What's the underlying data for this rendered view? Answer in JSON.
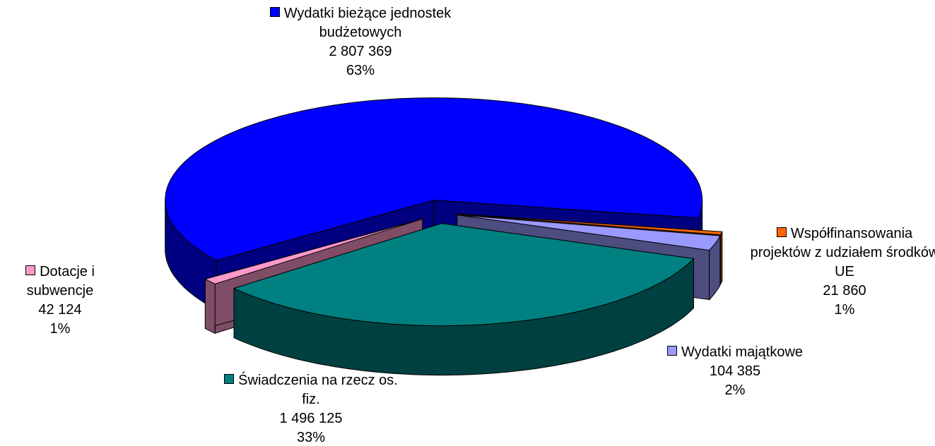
{
  "chart_data": {
    "type": "pie3d",
    "categories": [
      "Wydatki bieżące jednostek budżetowych",
      "Współfinansowania projektów z udziałem środków UE",
      "Wydatki majątkowe",
      "Świadczenia na rzecz os. fiz.",
      "Dotacje i subwencje"
    ],
    "values": [
      2807369,
      21860,
      104385,
      1496125,
      42124
    ],
    "value_labels": [
      "2 807 369",
      "21 860",
      "104 385",
      "1 496 125",
      "42 124"
    ],
    "percents": [
      63,
      1,
      2,
      33,
      1
    ],
    "percent_labels": [
      "63%",
      "1%",
      "2%",
      "33%",
      "1%"
    ],
    "colors": [
      "#0000ff",
      "#ff6600",
      "#9999ff",
      "#008080",
      "#ff99cc"
    ]
  }
}
